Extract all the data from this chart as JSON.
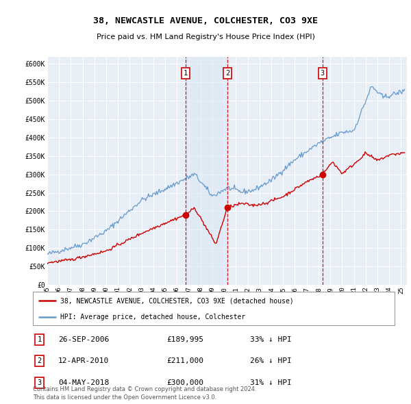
{
  "title": "38, NEWCASTLE AVENUE, COLCHESTER, CO3 9XE",
  "subtitle": "Price paid vs. HM Land Registry's House Price Index (HPI)",
  "ylim": [
    0,
    620000
  ],
  "yticks": [
    0,
    50000,
    100000,
    150000,
    200000,
    250000,
    300000,
    350000,
    400000,
    450000,
    500000,
    550000,
    600000
  ],
  "ytick_labels": [
    "£0",
    "£50K",
    "£100K",
    "£150K",
    "£200K",
    "£250K",
    "£300K",
    "£350K",
    "£400K",
    "£450K",
    "£500K",
    "£550K",
    "£600K"
  ],
  "xlim_start": 1995.0,
  "xlim_end": 2025.5,
  "plot_bg_color": "#e8eef5",
  "grid_color": "#ffffff",
  "sale_dates": [
    2006.74,
    2010.28,
    2018.34
  ],
  "sale_prices": [
    189995,
    211000,
    300000
  ],
  "sale_labels": [
    "1",
    "2",
    "3"
  ],
  "sale_date_strs": [
    "26-SEP-2006",
    "12-APR-2010",
    "04-MAY-2018"
  ],
  "sale_price_strs": [
    "£189,995",
    "£211,000",
    "£300,000"
  ],
  "sale_pct_strs": [
    "33% ↓ HPI",
    "26% ↓ HPI",
    "31% ↓ HPI"
  ],
  "legend_label_red": "38, NEWCASTLE AVENUE, COLCHESTER, CO3 9XE (detached house)",
  "legend_label_blue": "HPI: Average price, detached house, Colchester",
  "footer_line1": "Contains HM Land Registry data © Crown copyright and database right 2024.",
  "footer_line2": "This data is licensed under the Open Government Licence v3.0.",
  "red_color": "#cc0000",
  "blue_color": "#6699cc",
  "shade_color": "#dce8f5",
  "vline_color": "#cc0000"
}
